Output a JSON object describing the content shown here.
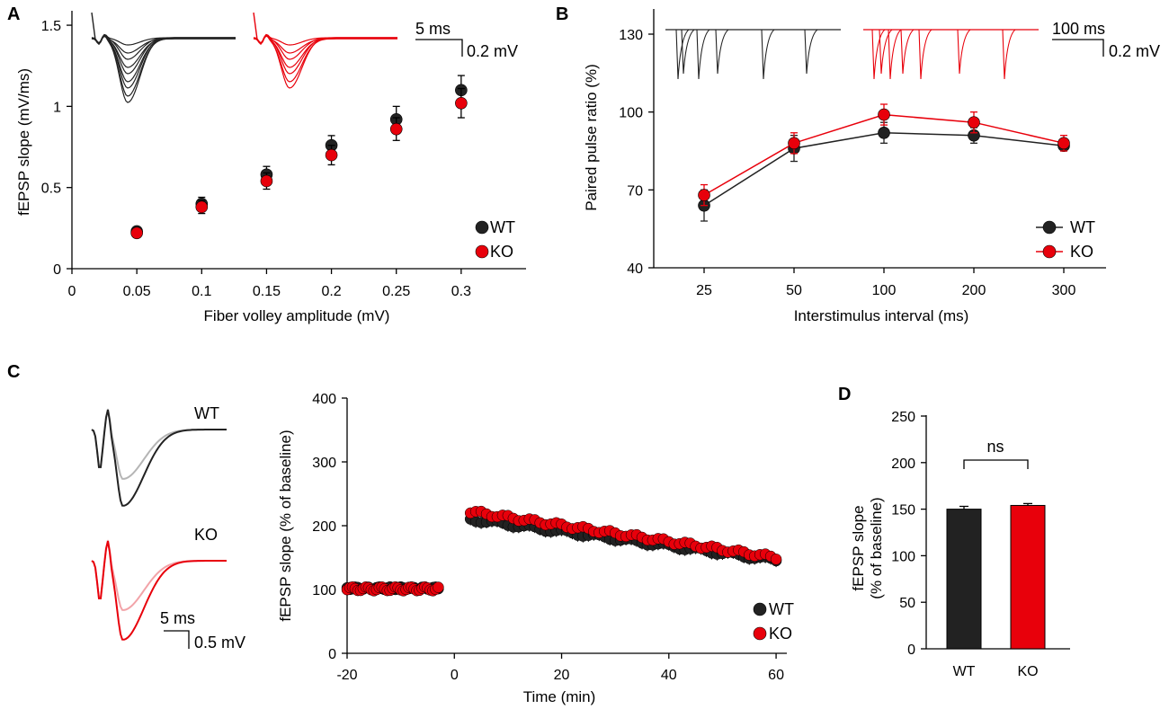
{
  "colors": {
    "wt": "#222222",
    "ko": "#e8000b",
    "wt_light": "#b5b5b5",
    "ko_light": "#f2a3a8"
  },
  "chart_data": [
    {
      "panel": "A",
      "type": "scatter",
      "xlabel": "Fiber volley amplitude (mV)",
      "ylabel": "fEPSP slope (mV/ms)",
      "xlim": [
        0,
        0.35
      ],
      "ylim": [
        0,
        1.6
      ],
      "xticks": [
        "0",
        "0.05",
        "0.1",
        "0.15",
        "0.2",
        "0.25",
        "0.3"
      ],
      "yticks": [
        "0",
        "0.5",
        "1",
        "1.5"
      ],
      "x": [
        0.05,
        0.1,
        0.15,
        0.2,
        0.25,
        0.3
      ],
      "series": [
        {
          "name": "WT",
          "values": [
            0.23,
            0.4,
            0.58,
            0.76,
            0.92,
            1.1
          ],
          "err": [
            0.02,
            0.04,
            0.05,
            0.06,
            0.08,
            0.09
          ]
        },
        {
          "name": "KO",
          "values": [
            0.22,
            0.38,
            0.54,
            0.7,
            0.86,
            1.02
          ],
          "err": [
            0.02,
            0.04,
            0.05,
            0.06,
            0.07,
            0.09
          ]
        }
      ],
      "scalebar": {
        "time": "5 ms",
        "amp": "0.2 mV"
      }
    },
    {
      "panel": "B",
      "type": "line",
      "xlabel": "Interstimulus interval (ms)",
      "ylabel": "Paired pulse ratio (%)",
      "categories": [
        "25",
        "50",
        "100",
        "200",
        "300"
      ],
      "ylim": [
        40,
        130
      ],
      "yticks": [
        "40",
        "70",
        "100",
        "130"
      ],
      "series": [
        {
          "name": "WT",
          "values": [
            64,
            86,
            92,
            91,
            87
          ],
          "err": [
            6,
            5,
            4,
            3,
            2
          ]
        },
        {
          "name": "KO",
          "values": [
            68,
            88,
            99,
            96,
            88
          ],
          "err": [
            4,
            4,
            4,
            4,
            3
          ]
        }
      ],
      "scalebar": {
        "time": "100 ms",
        "amp": "0.2 mV"
      }
    },
    {
      "panel": "C",
      "type": "scatter",
      "xlabel": "Time (min)",
      "ylabel": "fEPSP slope (% of baseline)",
      "xlim": [
        -20,
        62
      ],
      "ylim": [
        0,
        400
      ],
      "xticks": [
        "-20",
        "0",
        "20",
        "40",
        "60"
      ],
      "yticks": [
        "0",
        "100",
        "200",
        "300",
        "400"
      ],
      "baseline": {
        "x_start": -20,
        "x_end": -3,
        "step": 0.5,
        "wt_level": 102,
        "ko_level": 101
      },
      "post": {
        "x_start": 3,
        "x_end": 60,
        "step": 1,
        "wt_start": 210,
        "wt_end": 146,
        "ko_start": 222,
        "ko_end": 150
      },
      "series": [
        {
          "name": "WT"
        },
        {
          "name": "KO"
        }
      ],
      "trace_labels": {
        "wt": "WT",
        "ko": "KO"
      },
      "scalebar": {
        "time": "5 ms",
        "amp": "0.5 mV"
      }
    },
    {
      "panel": "D",
      "type": "bar",
      "ylabel": "fEPSP slope (% of baseline)",
      "ylabel_line1": "fEPSP slope",
      "ylabel_line2": "(% of baseline)",
      "categories": [
        "WT",
        "KO"
      ],
      "values": [
        150,
        154
      ],
      "err": [
        3,
        2
      ],
      "ylim": [
        0,
        250
      ],
      "yticks": [
        "0",
        "50",
        "100",
        "150",
        "200",
        "250"
      ],
      "annotation": "ns"
    }
  ]
}
